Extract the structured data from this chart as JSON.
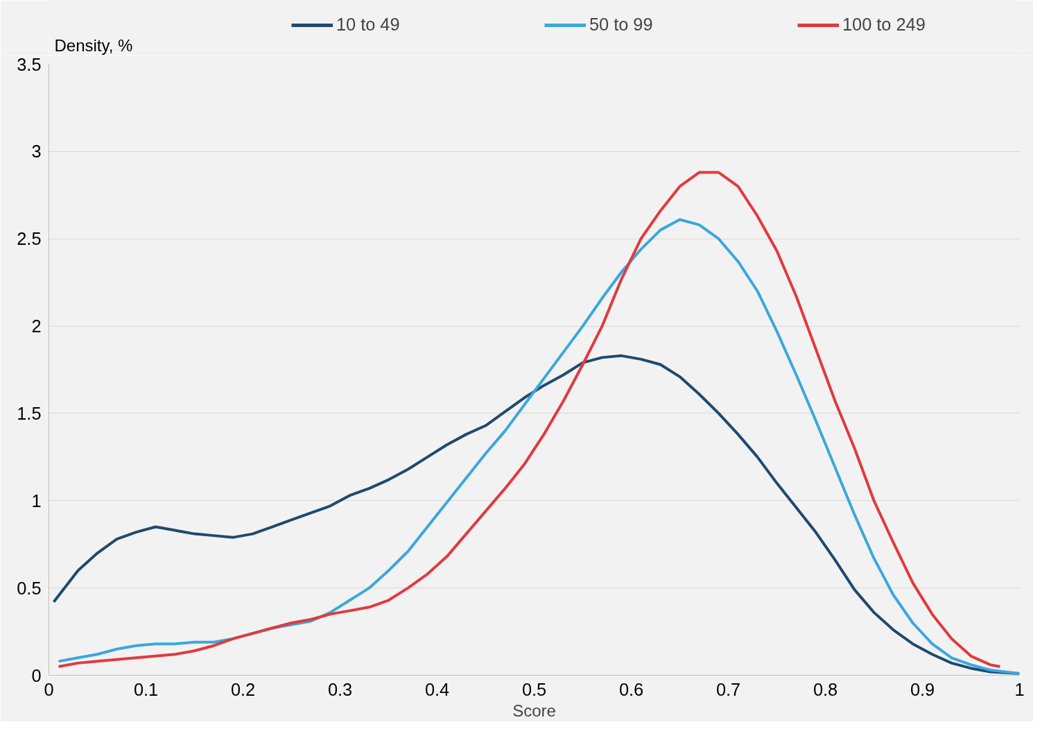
{
  "chart_data": {
    "type": "line",
    "ylabel": "Density, %",
    "xlabel": "Score",
    "xlim": [
      0,
      1
    ],
    "ylim": [
      0,
      3.5
    ],
    "xticks": [
      0,
      0.1,
      0.2,
      0.3,
      0.4,
      0.5,
      0.6,
      0.7,
      0.8,
      0.9,
      1
    ],
    "yticks": [
      0,
      0.5,
      1,
      1.5,
      2,
      2.5,
      3,
      3.5
    ],
    "grid": "y",
    "legend": "top",
    "line_style": "solid",
    "marker": "none",
    "x": [
      0.005,
      0.03,
      0.05,
      0.07,
      0.09,
      0.11,
      0.13,
      0.15,
      0.17,
      0.19,
      0.21,
      0.23,
      0.25,
      0.27,
      0.29,
      0.31,
      0.33,
      0.35,
      0.37,
      0.39,
      0.41,
      0.43,
      0.45,
      0.47,
      0.49,
      0.51,
      0.53,
      0.55,
      0.57,
      0.59,
      0.61,
      0.63,
      0.65,
      0.67,
      0.69,
      0.71,
      0.73,
      0.75,
      0.77,
      0.79,
      0.81,
      0.83,
      0.85,
      0.87,
      0.89,
      0.91,
      0.93,
      0.95,
      0.97,
      1.0
    ],
    "series": [
      {
        "name": "10 to 49",
        "color": "#1f4a6e",
        "values": [
          0.42,
          0.6,
          0.7,
          0.78,
          0.82,
          0.85,
          0.83,
          0.81,
          0.8,
          0.79,
          0.81,
          0.85,
          0.89,
          0.93,
          0.97,
          1.03,
          1.07,
          1.12,
          1.18,
          1.25,
          1.32,
          1.38,
          1.43,
          1.51,
          1.59,
          1.66,
          1.72,
          1.79,
          1.82,
          1.83,
          1.81,
          1.78,
          1.71,
          1.61,
          1.5,
          1.38,
          1.25,
          1.1,
          0.96,
          0.82,
          0.66,
          0.49,
          0.36,
          0.26,
          0.18,
          0.12,
          0.07,
          0.04,
          0.02,
          0.01
        ]
      },
      {
        "name": "50 to 99",
        "color": "#3aa8dc",
        "x": [
          0.01,
          0.03,
          0.05,
          0.07,
          0.09,
          0.11,
          0.13,
          0.15,
          0.17,
          0.19,
          0.21,
          0.23,
          0.25,
          0.27,
          0.29,
          0.31,
          0.33,
          0.35,
          0.37,
          0.39,
          0.41,
          0.43,
          0.45,
          0.47,
          0.49,
          0.51,
          0.53,
          0.55,
          0.57,
          0.59,
          0.61,
          0.63,
          0.65,
          0.67,
          0.69,
          0.71,
          0.73,
          0.75,
          0.77,
          0.79,
          0.81,
          0.83,
          0.85,
          0.87,
          0.89,
          0.91,
          0.93,
          0.95,
          0.97,
          1.0
        ],
        "values": [
          0.08,
          0.1,
          0.12,
          0.15,
          0.17,
          0.18,
          0.18,
          0.19,
          0.19,
          0.21,
          0.24,
          0.27,
          0.29,
          0.31,
          0.36,
          0.43,
          0.5,
          0.6,
          0.71,
          0.85,
          0.99,
          1.13,
          1.27,
          1.4,
          1.55,
          1.7,
          1.85,
          2.0,
          2.16,
          2.31,
          2.44,
          2.55,
          2.61,
          2.58,
          2.5,
          2.37,
          2.2,
          1.97,
          1.72,
          1.46,
          1.19,
          0.92,
          0.67,
          0.46,
          0.3,
          0.18,
          0.1,
          0.06,
          0.03,
          0.01
        ]
      },
      {
        "name": "100 to 249",
        "color": "#e03a3e",
        "x": [
          0.01,
          0.03,
          0.05,
          0.07,
          0.09,
          0.11,
          0.13,
          0.15,
          0.17,
          0.19,
          0.21,
          0.23,
          0.25,
          0.27,
          0.29,
          0.31,
          0.33,
          0.35,
          0.37,
          0.39,
          0.41,
          0.43,
          0.45,
          0.47,
          0.49,
          0.51,
          0.53,
          0.55,
          0.57,
          0.59,
          0.61,
          0.63,
          0.65,
          0.67,
          0.69,
          0.71,
          0.73,
          0.75,
          0.77,
          0.79,
          0.81,
          0.83,
          0.85,
          0.87,
          0.89,
          0.91,
          0.93,
          0.95,
          0.97,
          0.98
        ],
        "values": [
          0.05,
          0.07,
          0.08,
          0.09,
          0.1,
          0.11,
          0.12,
          0.14,
          0.17,
          0.21,
          0.24,
          0.27,
          0.3,
          0.32,
          0.35,
          0.37,
          0.39,
          0.43,
          0.5,
          0.58,
          0.68,
          0.81,
          0.94,
          1.07,
          1.21,
          1.38,
          1.57,
          1.78,
          2.0,
          2.27,
          2.5,
          2.66,
          2.8,
          2.88,
          2.88,
          2.8,
          2.63,
          2.43,
          2.17,
          1.87,
          1.57,
          1.3,
          1.0,
          0.76,
          0.53,
          0.35,
          0.21,
          0.11,
          0.06,
          0.05
        ]
      }
    ]
  }
}
